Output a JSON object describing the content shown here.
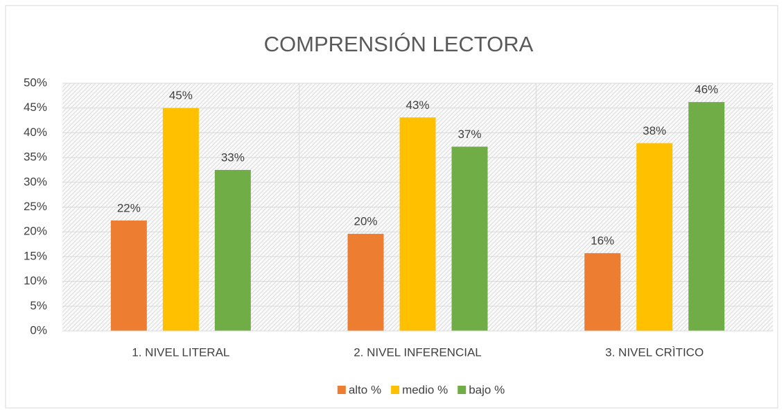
{
  "chart_data": {
    "type": "bar",
    "title": "COMPRENSIÓN LECTORA",
    "categories": [
      "1. NIVEL LITERAL",
      "2. NIVEL INFERENCIAL",
      "3. NIVEL CRÌTICO"
    ],
    "series": [
      {
        "name": "alto %",
        "color": "#ed7d31",
        "values": [
          22.3,
          19.6,
          15.7
        ],
        "value_labels": [
          "22%",
          "20%",
          "16%"
        ]
      },
      {
        "name": "medio %",
        "color": "#ffc000",
        "values": [
          45.0,
          43.1,
          37.9
        ],
        "value_labels": [
          "45%",
          "43%",
          "38%"
        ]
      },
      {
        "name": "bajo %",
        "color": "#70ad47",
        "values": [
          32.5,
          37.2,
          46.2
        ],
        "value_labels": [
          "33%",
          "37%",
          "46%"
        ]
      }
    ],
    "ylim": [
      0,
      50
    ],
    "yticks": [
      {
        "value": 0,
        "label": "0%"
      },
      {
        "value": 5,
        "label": "5%"
      },
      {
        "value": 10,
        "label": "10%"
      },
      {
        "value": 15,
        "label": "15%"
      },
      {
        "value": 20,
        "label": "20%"
      },
      {
        "value": 25,
        "label": "25%"
      },
      {
        "value": 30,
        "label": "30%"
      },
      {
        "value": 35,
        "label": "35%"
      },
      {
        "value": 40,
        "label": "40%"
      },
      {
        "value": 45,
        "label": "45%"
      },
      {
        "value": 50,
        "label": "50%"
      }
    ],
    "grid": true,
    "legend": "bottom"
  }
}
